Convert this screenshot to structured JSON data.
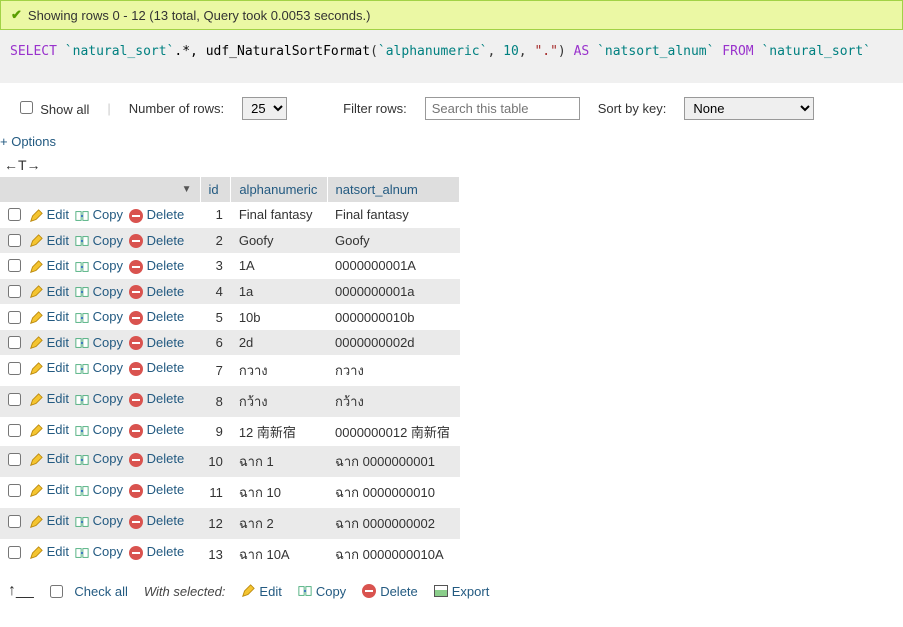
{
  "success_msg": "Showing rows 0 - 12 (13 total, Query took 0.0053 seconds.)",
  "sql": {
    "kw_select": "SELECT",
    "ident1": "`natural_sort`",
    "dot_star": ".*,",
    "func": "udf_NaturalSortFormat",
    "lparen": "(",
    "arg1": "`alphanumeric`",
    "comma1": ",",
    "arg2": "10",
    "comma2": ",",
    "arg3": "\".\"",
    "rparen": ")",
    "kw_as": "AS",
    "alias": "`natsort_alnum`",
    "kw_from": "FROM",
    "tbl": "`natural_sort`"
  },
  "controls": {
    "show_all": "Show all",
    "num_rows_label": "Number of rows:",
    "num_rows_value": "25",
    "filter_label": "Filter rows:",
    "filter_placeholder": "Search this table",
    "sort_label": "Sort by key:",
    "sort_value": "None"
  },
  "options_link": "+ Options",
  "sort_arrows": "←T→",
  "columns": {
    "id": "id",
    "alphanumeric": "alphanumeric",
    "natsort": "natsort_alnum"
  },
  "row_actions": {
    "edit": "Edit",
    "copy": "Copy",
    "delete": "Delete"
  },
  "rows": [
    {
      "id": "1",
      "alpha": "Final fantasy",
      "nat": "Final fantasy"
    },
    {
      "id": "2",
      "alpha": "Goofy",
      "nat": "Goofy"
    },
    {
      "id": "3",
      "alpha": "1A",
      "nat": "0000000001A"
    },
    {
      "id": "4",
      "alpha": "1a",
      "nat": "0000000001a"
    },
    {
      "id": "5",
      "alpha": "10b",
      "nat": "0000000010b"
    },
    {
      "id": "6",
      "alpha": "2d",
      "nat": "0000000002d"
    },
    {
      "id": "7",
      "alpha": "กวาง",
      "nat": "กวาง"
    },
    {
      "id": "8",
      "alpha": "กว้าง",
      "nat": "กว้าง"
    },
    {
      "id": "9",
      "alpha": "12 南新宿",
      "nat": "0000000012 南新宿"
    },
    {
      "id": "10",
      "alpha": "ฉาก 1",
      "nat": "ฉาก 0000000001"
    },
    {
      "id": "11",
      "alpha": "ฉาก 10",
      "nat": "ฉาก 0000000010"
    },
    {
      "id": "12",
      "alpha": "ฉาก 2",
      "nat": "ฉาก 0000000002"
    },
    {
      "id": "13",
      "alpha": "ฉาก 10A",
      "nat": "ฉาก 0000000010A"
    }
  ],
  "footer": {
    "check_all": "Check all",
    "with_selected": "With selected:",
    "edit": "Edit",
    "copy": "Copy",
    "delete": "Delete",
    "export": "Export"
  },
  "colors": {
    "link": "#235a81",
    "success_bg": "#ebf8a4",
    "sql_bg": "#f0f0f0",
    "row_even": "#eaeaea",
    "header_bg": "#dedede"
  }
}
